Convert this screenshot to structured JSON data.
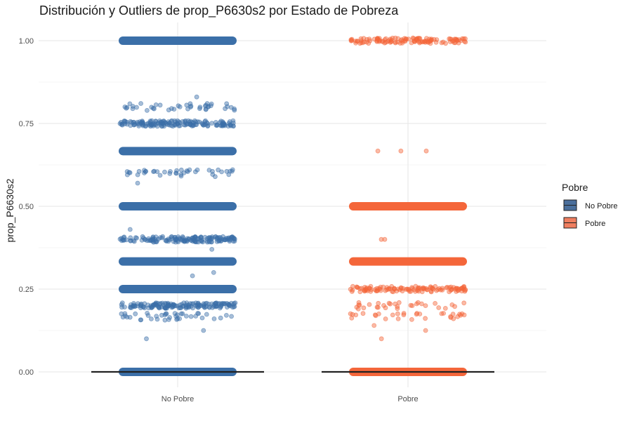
{
  "colors": {
    "no_pobre": "#3b6fa8",
    "pobre": "#f4663a",
    "no_pobre_legend_fill": "#4a6f9c",
    "pobre_legend_fill": "#f07f60",
    "median_line": "#222222",
    "grid": "#e6e6e6",
    "background": "#ffffff"
  },
  "chart_data": {
    "type": "scatter",
    "title": "Distribución y Outliers de prop_P6630s2 por Estado de Pobreza",
    "xlabel": "",
    "ylabel": "prop_P6630s2",
    "categories": [
      "No Pobre",
      "Pobre"
    ],
    "ylim": [
      -0.05,
      1.05
    ],
    "yticks": [
      0.0,
      0.25,
      0.5,
      0.75,
      1.0
    ],
    "ytick_labels": [
      "0.00",
      "0.25",
      "0.50",
      "0.75",
      "1.00"
    ],
    "grid": true,
    "legend": {
      "title": "Pobre",
      "position": "right",
      "entries": [
        "No Pobre",
        "Pobre"
      ]
    },
    "overlay": "boxplot with jittered points (alpha ~0.4)",
    "boxplot_median": {
      "No Pobre": 0.0,
      "Pobre": 0.0
    },
    "series": [
      {
        "category": "No Pobre",
        "dense_levels": [
          0.0,
          0.25,
          0.3333,
          0.5,
          0.6667,
          1.0
        ],
        "medium_levels": [
          0.2,
          0.4,
          0.75
        ],
        "sparse_levels": [
          0.1667,
          0.6,
          0.8
        ],
        "outliers": [
          0.83,
          0.8,
          0.57,
          0.43,
          0.37,
          0.3,
          0.29,
          0.125,
          0.1
        ]
      },
      {
        "category": "Pobre",
        "dense_levels": [
          0.0,
          0.3333,
          0.5
        ],
        "medium_levels": [
          1.0,
          0.25
        ],
        "sparse_levels": [
          0.2,
          0.1667
        ],
        "outliers": [
          0.667,
          0.667,
          0.667,
          0.4,
          0.4,
          0.14,
          0.125,
          0.1
        ]
      }
    ]
  }
}
